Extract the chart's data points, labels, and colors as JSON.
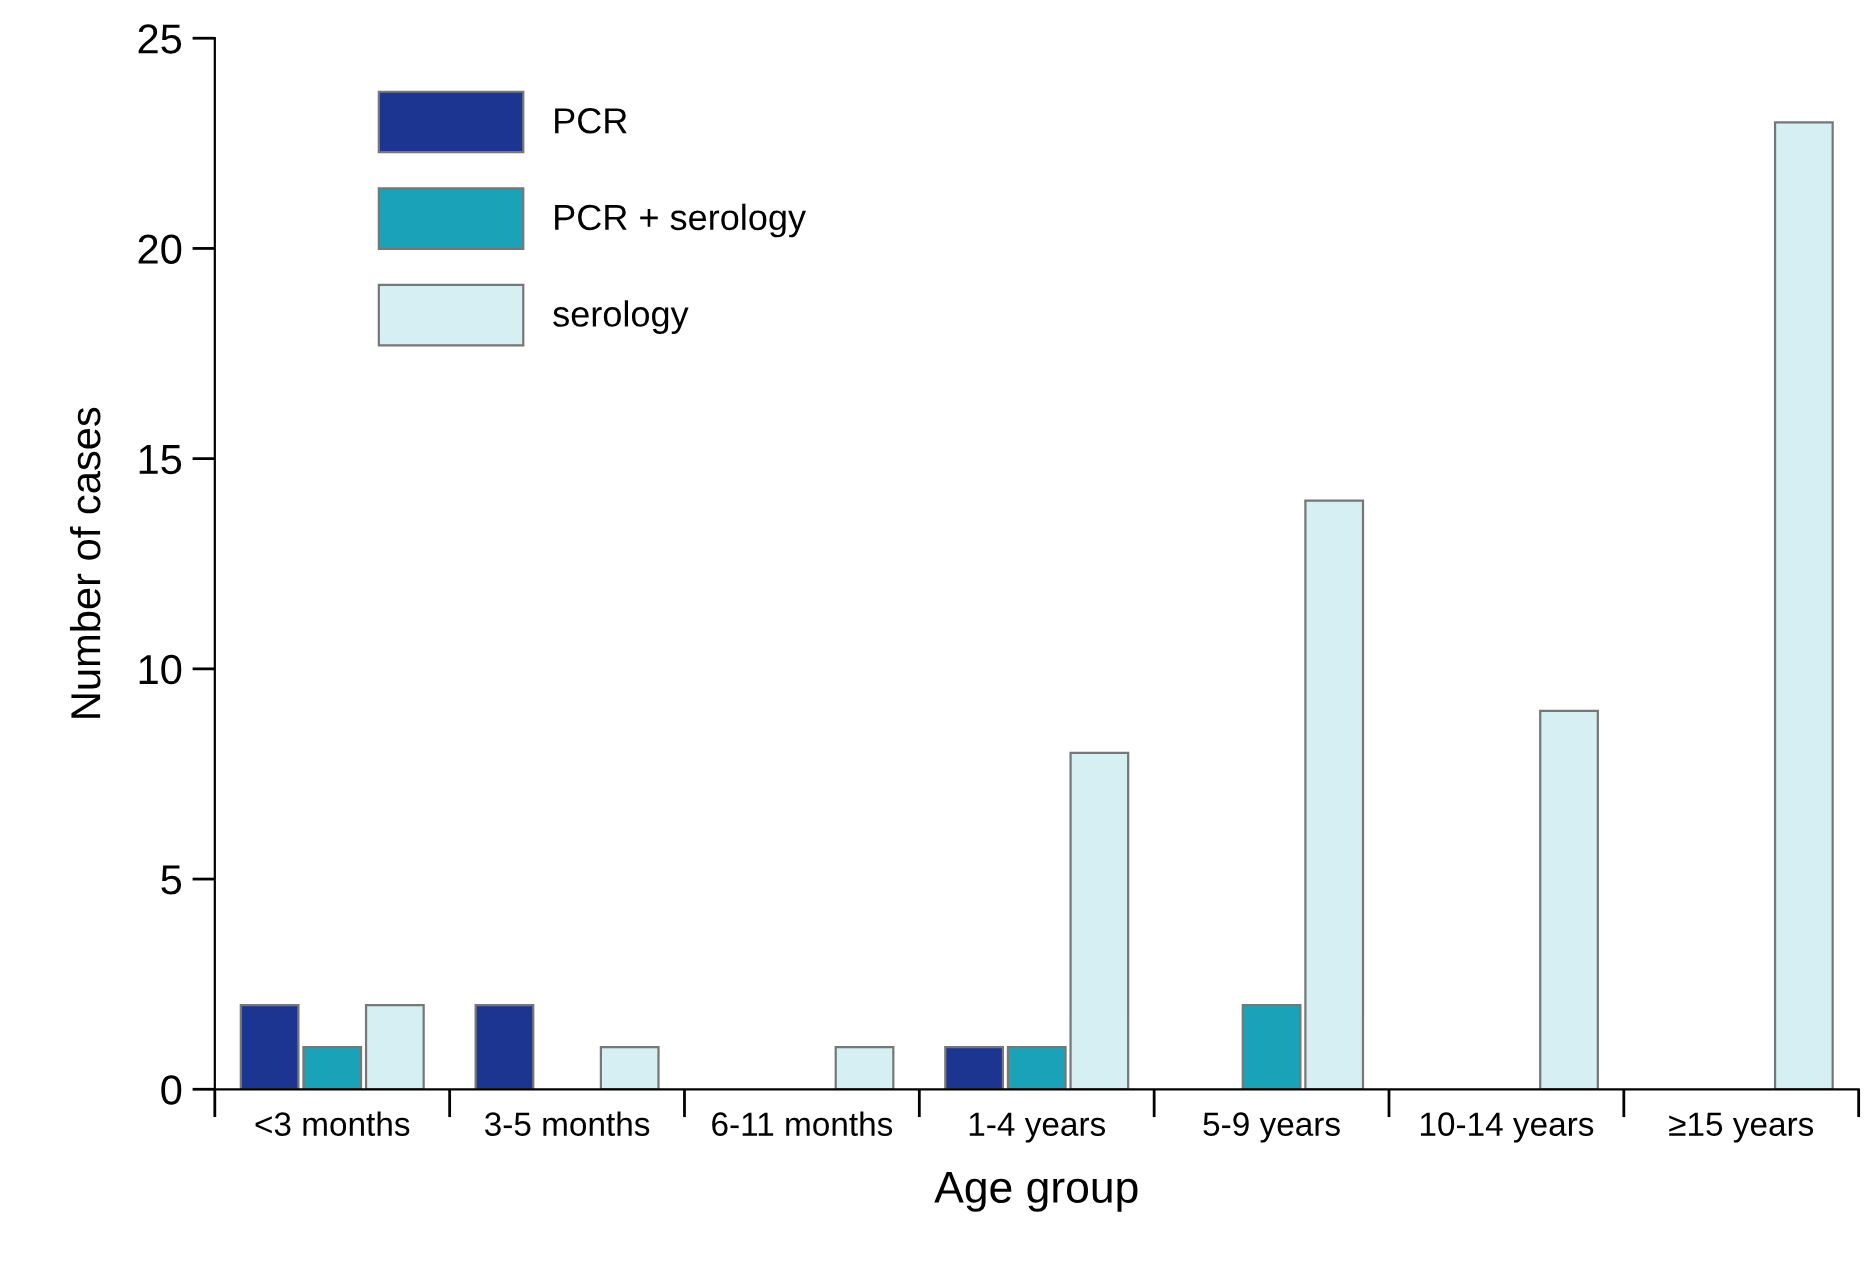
{
  "chart_data": {
    "type": "bar",
    "xlabel": "Age group",
    "ylabel": "Number of cases",
    "categories": [
      "<3 months",
      "3-5 months",
      "6-11 months",
      "1-4 years",
      "5-9 years",
      "10-14 years",
      "≥15 years"
    ],
    "series": [
      {
        "name": "PCR",
        "color": "#1c3591",
        "values": [
          2,
          2,
          null,
          1,
          null,
          null,
          null
        ]
      },
      {
        "name": "PCR + serology",
        "color": "#1aa3b8",
        "values": [
          1,
          null,
          null,
          1,
          2,
          null,
          null
        ]
      },
      {
        "name": "serology",
        "color": "#d5eff2",
        "values": [
          2,
          1,
          1,
          8,
          14,
          9,
          23
        ]
      }
    ],
    "ylim": [
      0,
      25
    ],
    "yticks": [
      0,
      5,
      10,
      15,
      20,
      25
    ],
    "grid": false,
    "legend": "top left"
  }
}
